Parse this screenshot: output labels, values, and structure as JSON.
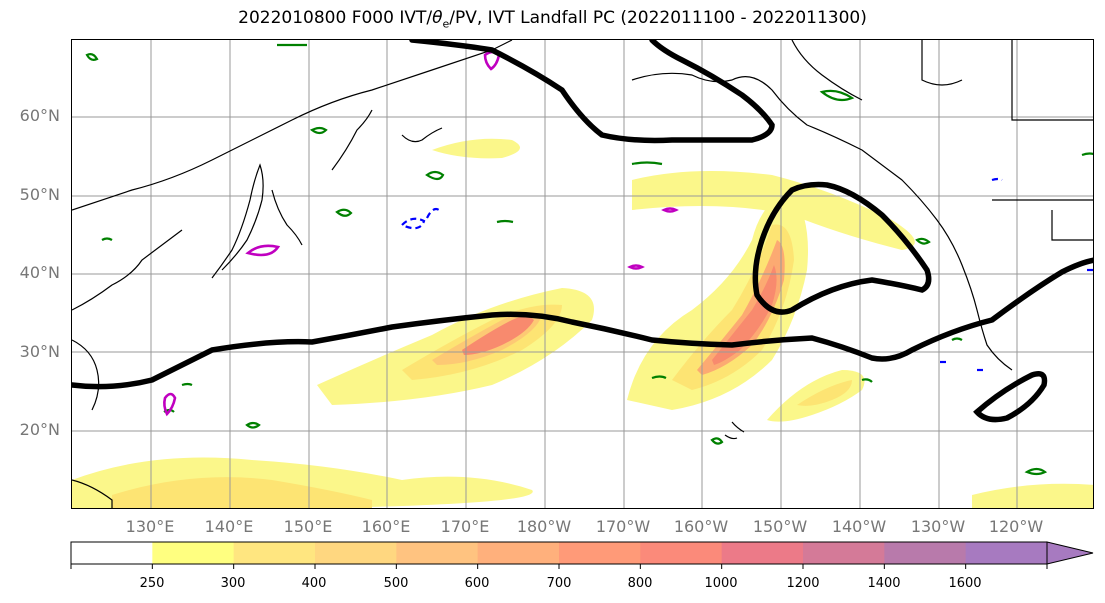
{
  "title": {
    "prefix": "2022010800 F000 IVT/",
    "theta": "θ",
    "theta_sub": "e",
    "suffix": "/PV, IVT Landfall PC (2022011100 - 2022011300)"
  },
  "map": {
    "lat_labels": [
      "60°N",
      "50°N",
      "40°N",
      "30°N",
      "20°N"
    ],
    "lon_labels": [
      "130°E",
      "140°E",
      "150°E",
      "160°E",
      "170°E",
      "180°W",
      "170°W",
      "160°W",
      "150°W",
      "140°W",
      "130°W",
      "120°W"
    ],
    "fill_colors": [
      "#fbf78a",
      "#fde473",
      "#fdc974",
      "#fcaa72",
      "#f88a6e",
      "#ee7078",
      "#cf7a98",
      "#a97ab8"
    ],
    "contour_colors": {
      "thick": "#000000",
      "theta": "#008000",
      "pv_blue": "#0000ff",
      "pv_magenta": "#c000c0"
    }
  },
  "colorbar": {
    "ticks": [
      "250",
      "300",
      "400",
      "500",
      "600",
      "700",
      "800",
      "1000",
      "1200",
      "1400",
      "1600"
    ],
    "colors": [
      "#ffffff",
      "#ffff80",
      "#ffe680",
      "#ffd780",
      "#ffc380",
      "#ffb07c",
      "#ff9a78",
      "#fb8a7a",
      "#ec7a88",
      "#d47a98",
      "#b87aab",
      "#a77ac0"
    ]
  }
}
